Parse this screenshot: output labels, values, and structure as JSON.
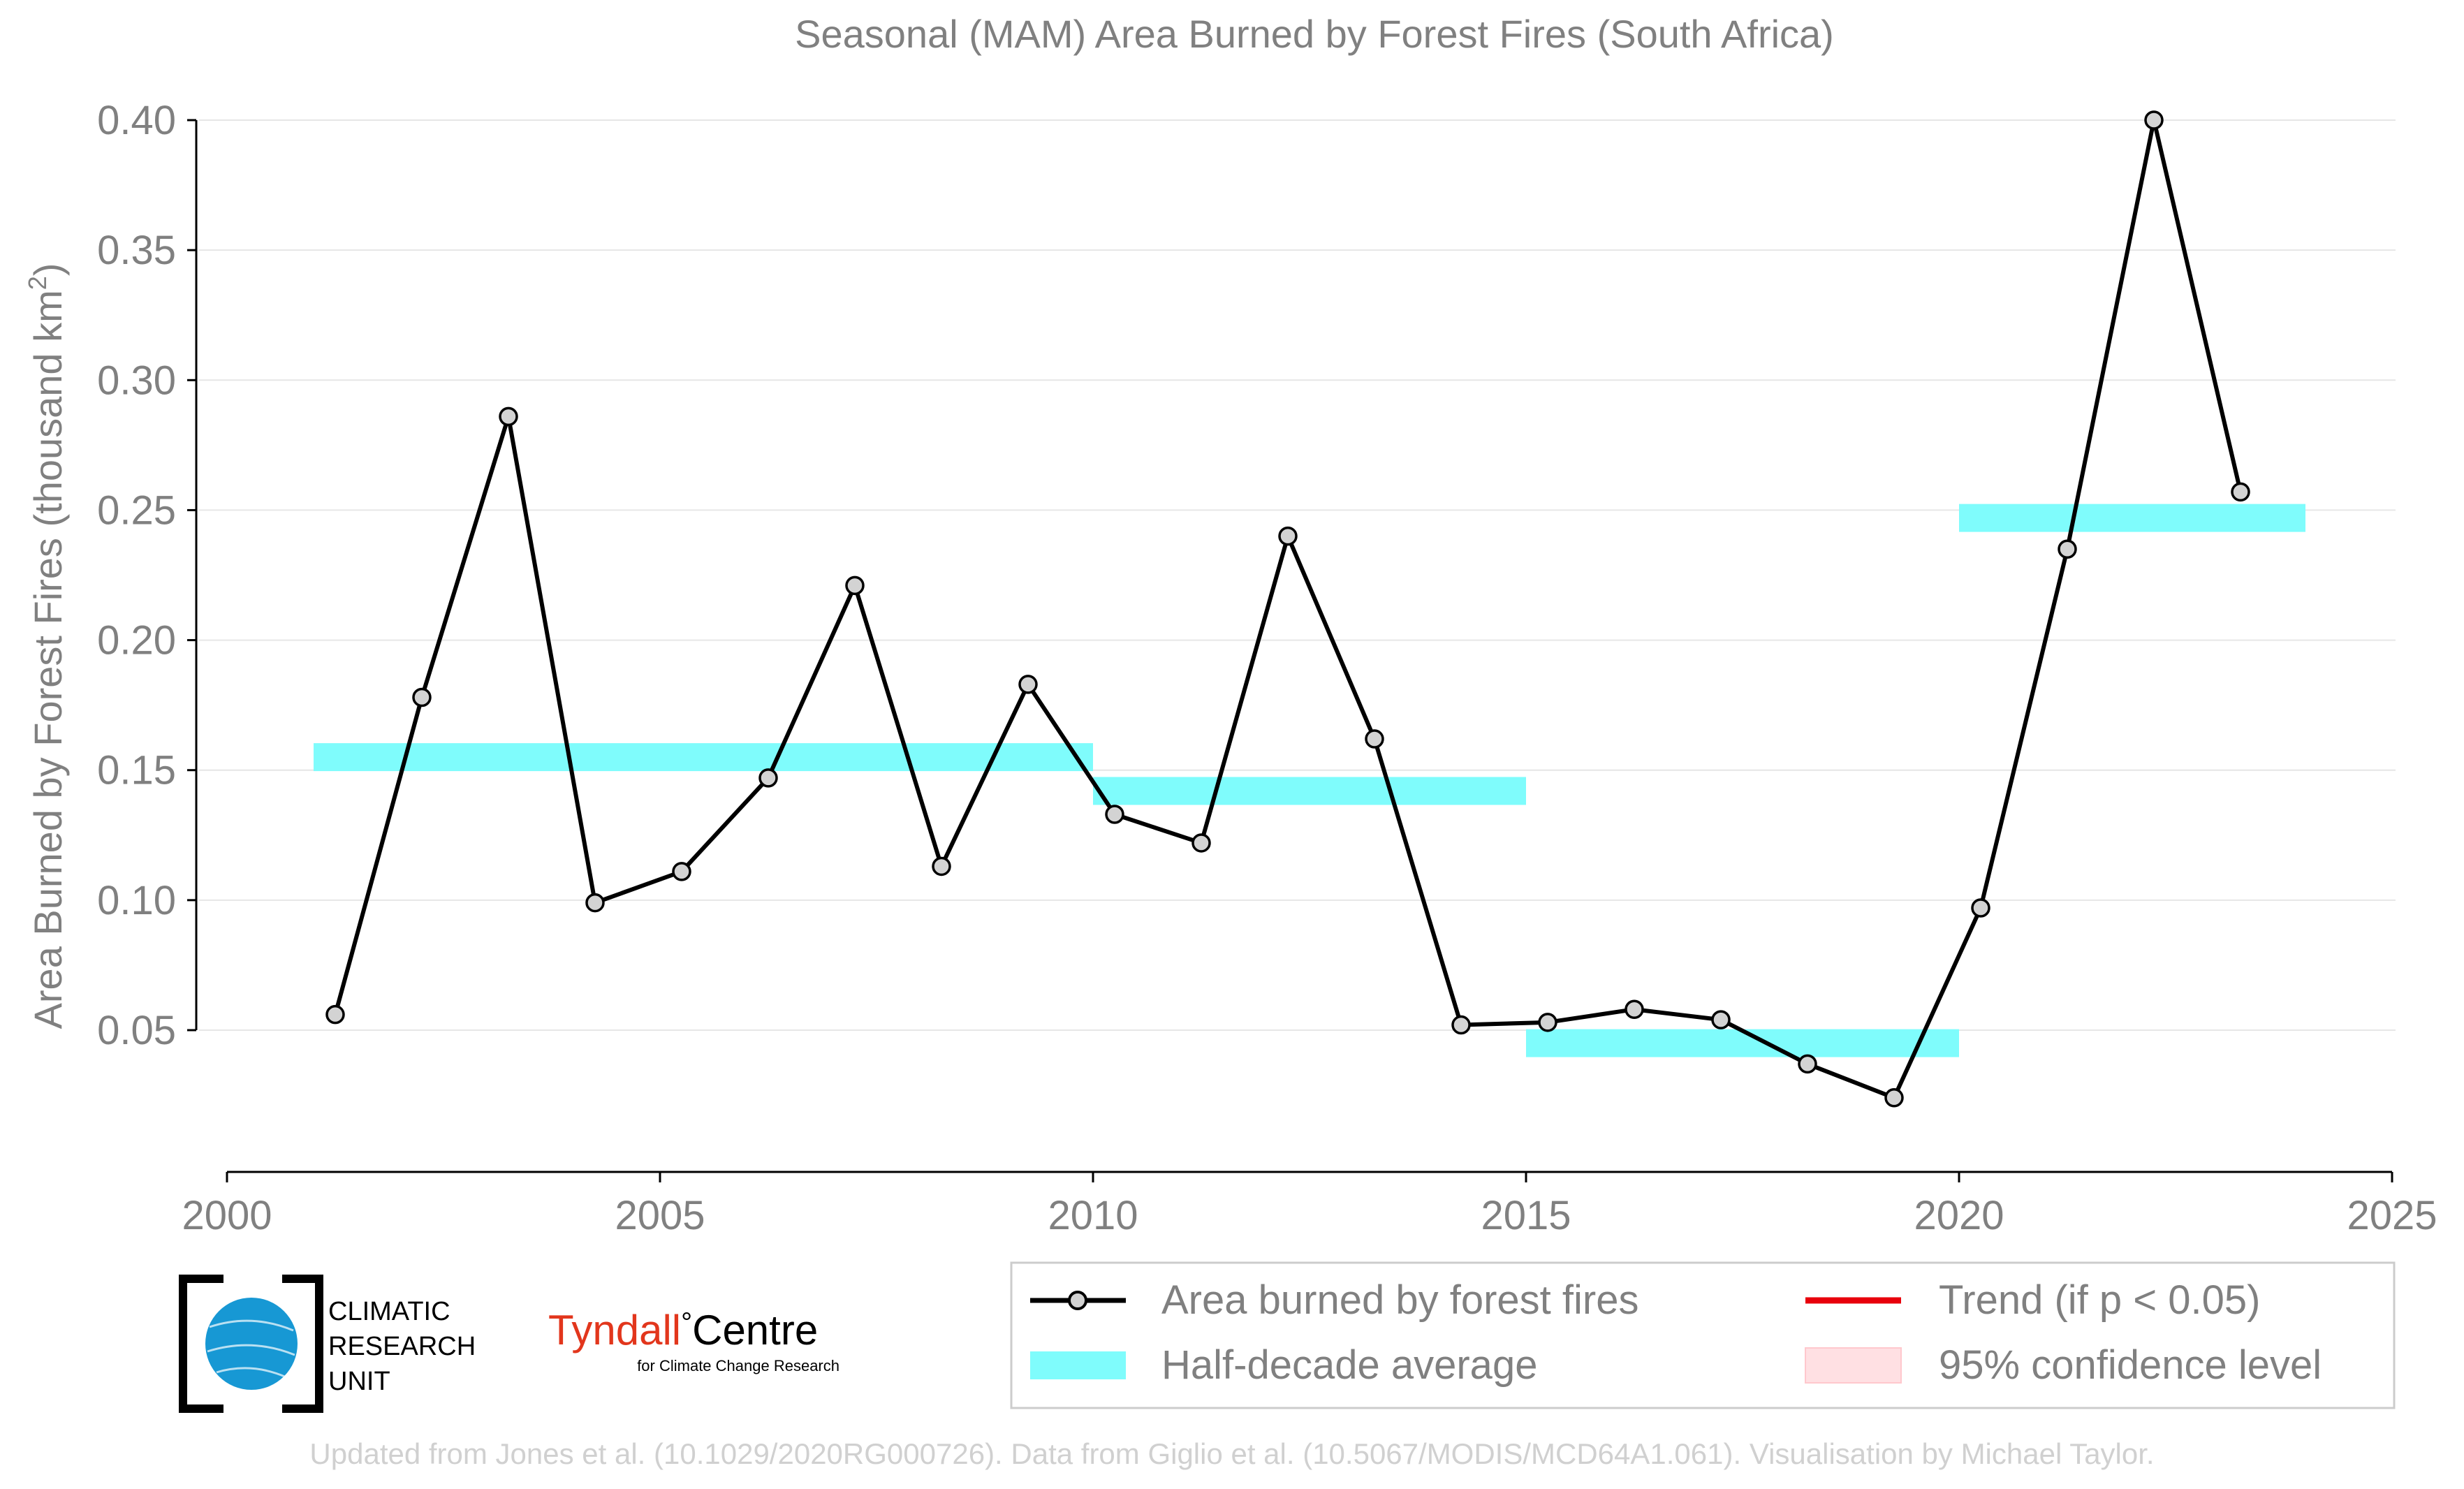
{
  "chart_data": {
    "type": "line",
    "title": "Seasonal (MAM) Area Burned by Forest Fires (South Africa)",
    "ylabel": "Area Burned by Forest Fires (thousand km",
    "ylabel_superscript": "2",
    "ylabel_suffix": ")",
    "xlim": [
      2000,
      2025
    ],
    "ylim": [
      0.0,
      0.41
    ],
    "xticks": [
      2000,
      2005,
      2010,
      2015,
      2020,
      2025
    ],
    "yticks": [
      0.05,
      0.1,
      0.15,
      0.2,
      0.25,
      0.3,
      0.35,
      0.4
    ],
    "ytick_labels": [
      "0.05",
      "0.10",
      "0.15",
      "0.20",
      "0.25",
      "0.30",
      "0.35",
      "0.40"
    ],
    "grid": "horizontal",
    "series": [
      {
        "name": "Area burned by forest fires",
        "color": "#000000",
        "marker_fill": "#d3d3d3",
        "x": [
          2001.25,
          2002.25,
          2003.25,
          2004.25,
          2005.25,
          2006.25,
          2007.25,
          2008.25,
          2009.25,
          2010.25,
          2011.25,
          2012.25,
          2013.25,
          2014.25,
          2015.25,
          2016.25,
          2017.25,
          2018.25,
          2019.25,
          2020.25,
          2021.25,
          2022.25,
          2023.25
        ],
        "values": [
          0.056,
          0.178,
          0.286,
          0.099,
          0.111,
          0.147,
          0.221,
          0.113,
          0.183,
          0.133,
          0.122,
          0.24,
          0.162,
          0.052,
          0.053,
          0.058,
          0.054,
          0.037,
          0.024,
          0.097,
          0.235,
          0.4,
          0.257
        ]
      }
    ],
    "half_decade_average": {
      "name": "Half-decade average",
      "color": "#7ffcfc",
      "segments": [
        {
          "x0": 2001,
          "x1": 2010,
          "value": 0.155
        },
        {
          "x0": 2010,
          "x1": 2015,
          "value": 0.142
        },
        {
          "x0": 2015,
          "x1": 2020,
          "value": 0.045
        },
        {
          "x0": 2020,
          "x1": 2024,
          "value": 0.247
        }
      ]
    },
    "legend": {
      "placement": "bottom-right",
      "items": [
        {
          "label": "Area burned by forest fires",
          "kind": "line-marker",
          "color": "#000000"
        },
        {
          "label": "Trend (if p < 0.05)",
          "kind": "line",
          "color": "#e8000b"
        },
        {
          "label": "Half-decade average",
          "kind": "band",
          "color": "#7ffcfc"
        },
        {
          "label": "95% confidence level",
          "kind": "patch",
          "color": "#ffe0e3"
        }
      ]
    },
    "credit": "Updated from Jones et al. (10.1029/2020RG000726). Data from Giglio et al. (10.5067/MODIS/MCD64A1.061). Visualisation by Michael Taylor.",
    "logos": {
      "cru_lines": [
        "CLIMATIC",
        "RESEARCH",
        "UNIT"
      ],
      "tyndall_name": "Tyndall",
      "tyndall_degree": "°",
      "tyndall_centre": "Centre",
      "tyndall_sub": "for Climate Change Research"
    },
    "colors": {
      "text": "#808080",
      "grid": "#e6e6e6",
      "axis": "#000000",
      "credit": "#d0d0d0",
      "tyndall_red": "#e2361c"
    }
  }
}
